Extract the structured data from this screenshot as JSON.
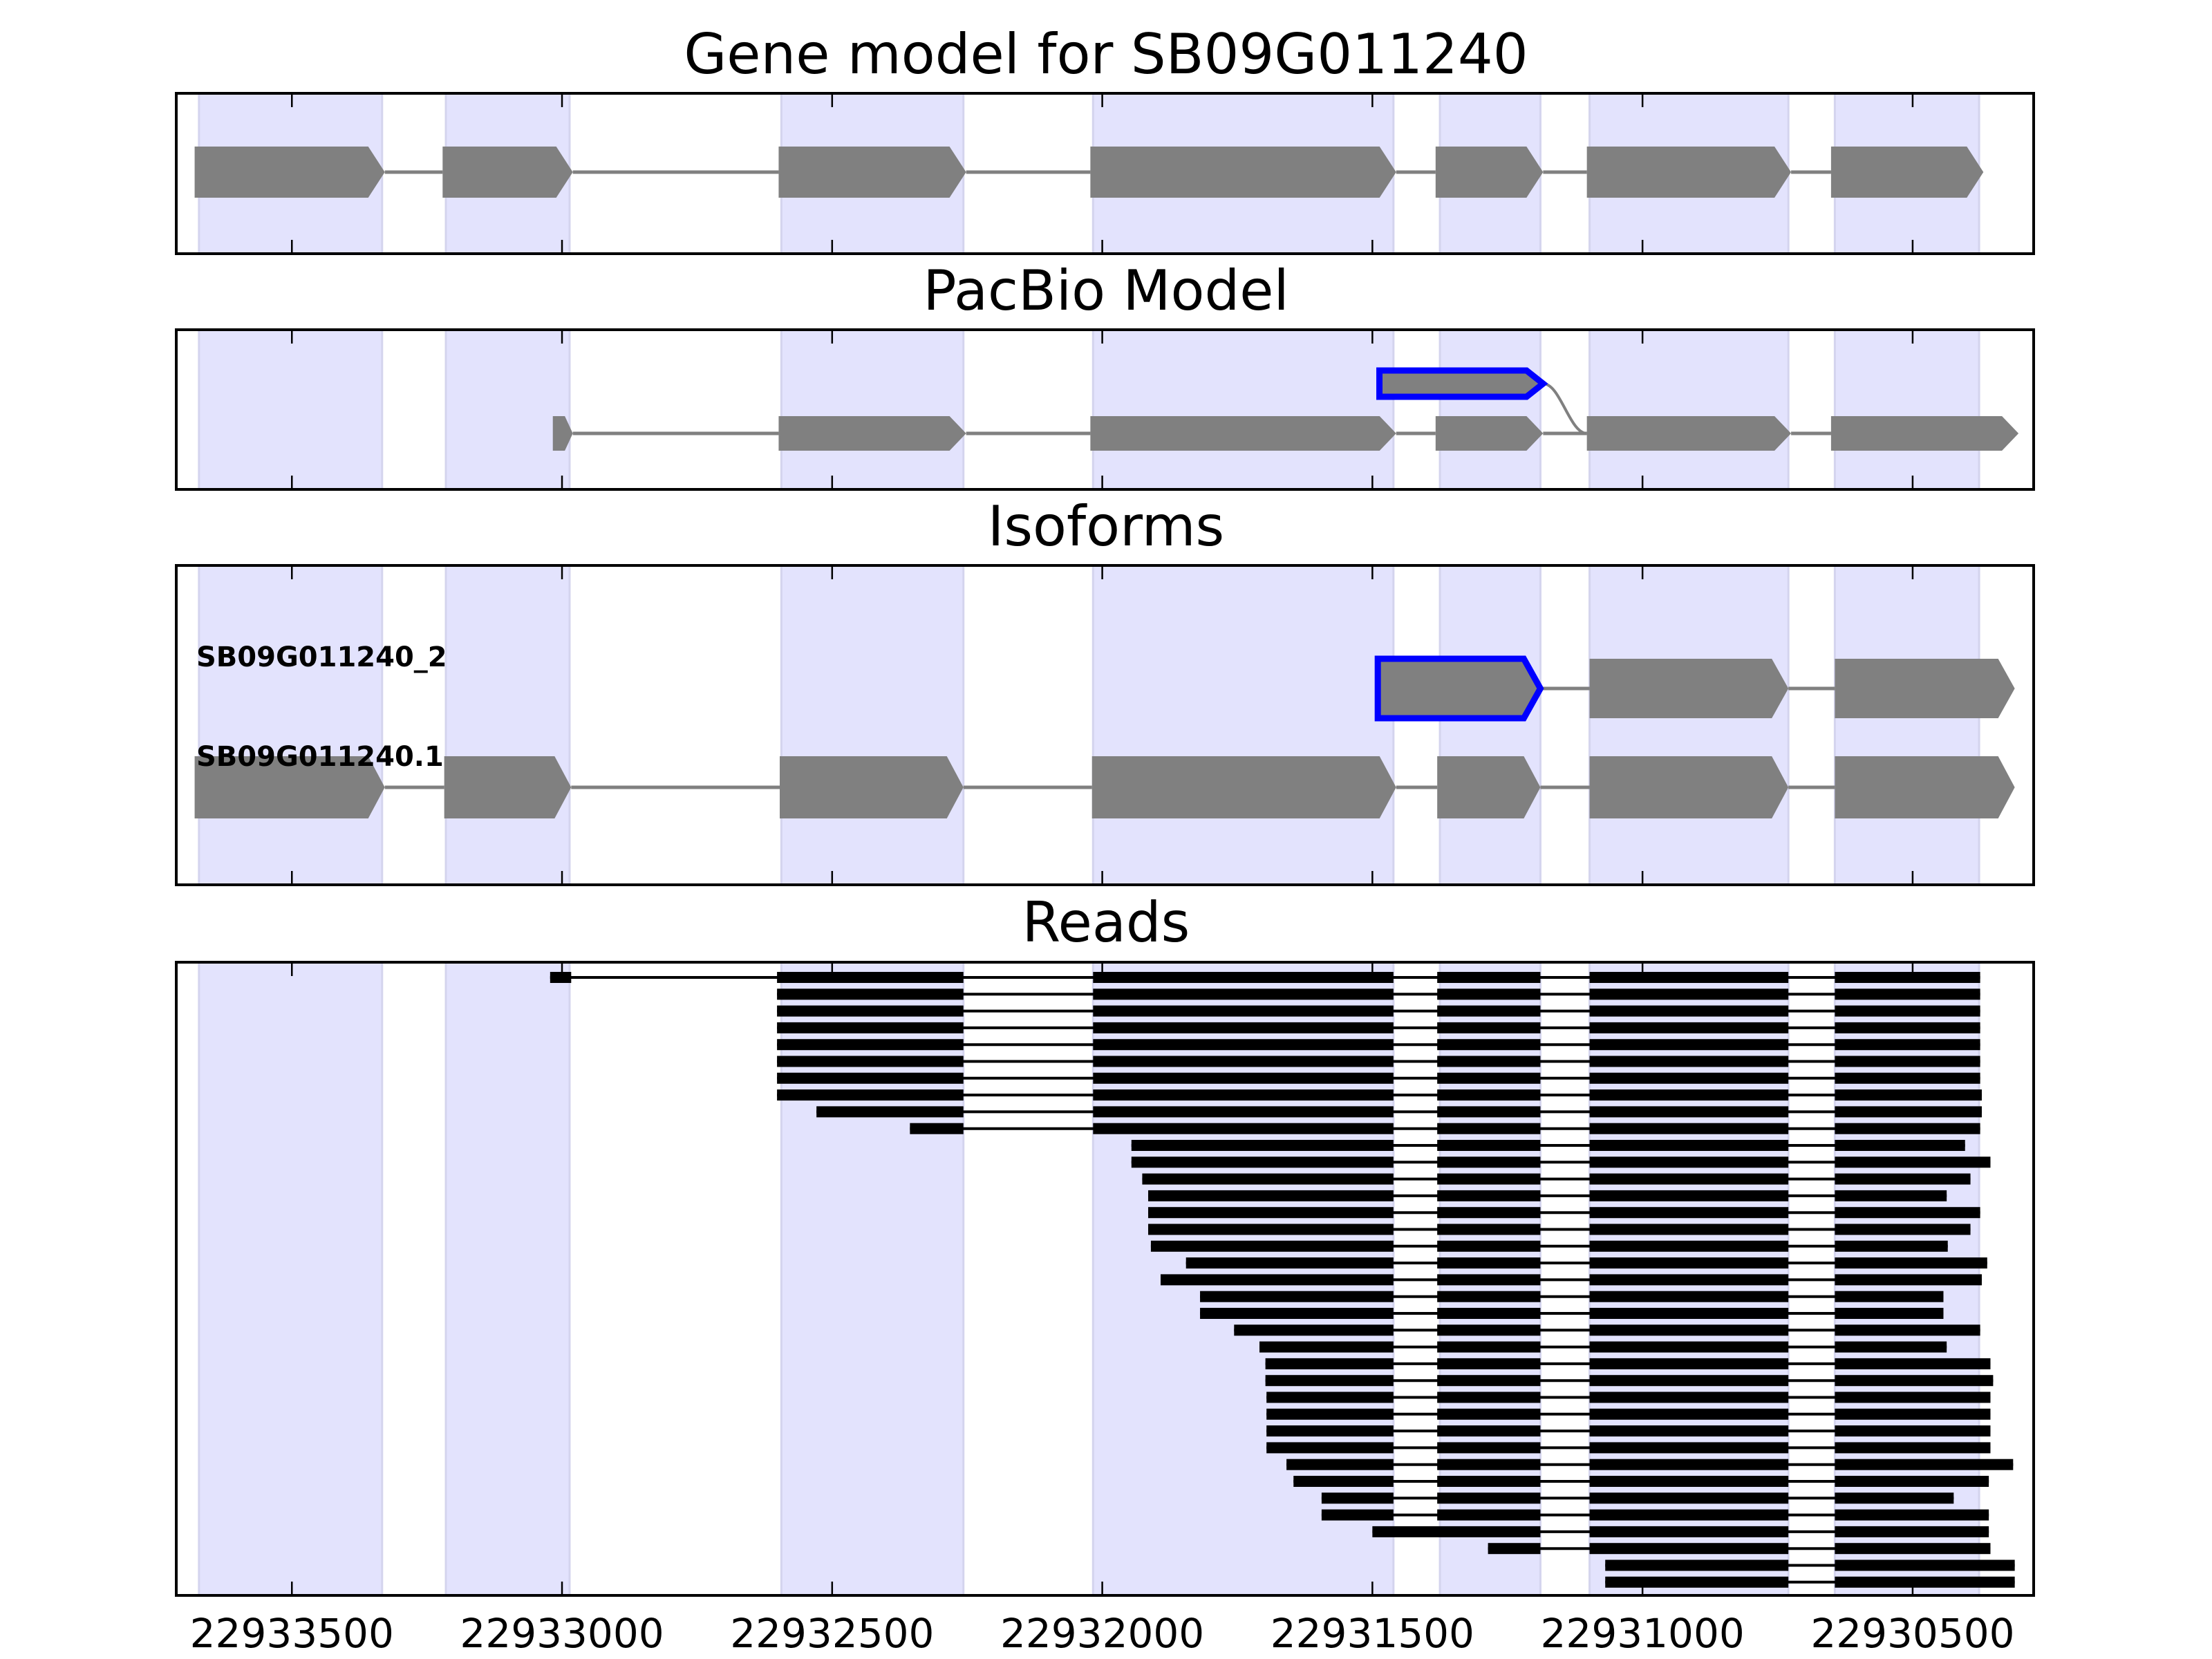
{
  "chart_data": {
    "type": "gene-track",
    "xlim": [
      22933714,
      22930276
    ],
    "x_ticks": [
      22933500,
      22933000,
      22932500,
      22932000,
      22931500,
      22931000,
      22930500
    ],
    "x_tick_labels": [
      "22933500",
      "22933000",
      "22932500",
      "22932000",
      "22931500",
      "22931000",
      "22930500"
    ],
    "colors": {
      "shade": "#e3e3fd",
      "exon": "#808080",
      "highlight": "#0000ff",
      "read": "#000000",
      "intron": "#808080"
    },
    "shaded_regions": [
      [
        22933672,
        22933333
      ],
      [
        22933215,
        22932986
      ],
      [
        22932594,
        22932257
      ],
      [
        22932017,
        22931461
      ],
      [
        22931375,
        22931189
      ],
      [
        22931098,
        22930730
      ],
      [
        22930644,
        22930377
      ]
    ],
    "panels": [
      {
        "title": "Gene model for SB09G011240",
        "rows": [
          {
            "exons": [
              [
                22933680,
                22933328
              ],
              [
                22933221,
                22932980
              ],
              [
                22932599,
                22932252
              ],
              [
                22932022,
                22931456
              ],
              [
                22931383,
                22931184
              ],
              [
                22931103,
                22930725
              ],
              [
                22930651,
                22930369
              ]
            ]
          }
        ]
      },
      {
        "title": "PacBio Model",
        "rows": [
          {
            "exons": [
              [
                22931487,
                22931184
              ]
            ],
            "highlight": true,
            "joins_next_row_at": 22931103
          },
          {
            "exons": [
              [
                22933017,
                22932980
              ],
              [
                22932599,
                22932252
              ],
              [
                22932022,
                22931456
              ],
              [
                22931383,
                22931184
              ],
              [
                22931103,
                22930725
              ],
              [
                22930651,
                22930304
              ]
            ]
          }
        ]
      },
      {
        "title": "Isoforms",
        "rows": [
          {
            "label": "SB09G011240_2",
            "exons": [
              [
                22931490,
                22931189
              ],
              [
                22931098,
                22930730
              ],
              [
                22930644,
                22930311
              ]
            ],
            "highlight_first": true
          },
          {
            "label": "SB09G011240.1",
            "exons": [
              [
                22933680,
                22933328
              ],
              [
                22933218,
                22932983
              ],
              [
                22932597,
                22932257
              ],
              [
                22932019,
                22931456
              ],
              [
                22931380,
                22931189
              ],
              [
                22931098,
                22930730
              ],
              [
                22930644,
                22930311
              ]
            ]
          }
        ]
      },
      {
        "title": "Reads"
      }
    ],
    "reads": [
      [
        [
          22933022,
          22932983
        ],
        [
          22932602,
          22932257
        ],
        [
          22932017,
          22931461
        ],
        [
          22931380,
          22931189
        ],
        [
          22931098,
          22930730
        ],
        [
          22930644,
          22930375
        ]
      ],
      [
        [
          22932602,
          22932257
        ],
        [
          22932017,
          22931461
        ],
        [
          22931380,
          22931189
        ],
        [
          22931098,
          22930730
        ],
        [
          22930644,
          22930375
        ]
      ],
      [
        [
          22932602,
          22932257
        ],
        [
          22932017,
          22931461
        ],
        [
          22931380,
          22931189
        ],
        [
          22931098,
          22930730
        ],
        [
          22930644,
          22930375
        ]
      ],
      [
        [
          22932602,
          22932257
        ],
        [
          22932017,
          22931461
        ],
        [
          22931380,
          22931189
        ],
        [
          22931098,
          22930730
        ],
        [
          22930644,
          22930375
        ]
      ],
      [
        [
          22932602,
          22932257
        ],
        [
          22932017,
          22931461
        ],
        [
          22931380,
          22931189
        ],
        [
          22931098,
          22930730
        ],
        [
          22930644,
          22930375
        ]
      ],
      [
        [
          22932602,
          22932257
        ],
        [
          22932017,
          22931461
        ],
        [
          22931380,
          22931189
        ],
        [
          22931098,
          22930730
        ],
        [
          22930644,
          22930375
        ]
      ],
      [
        [
          22932602,
          22932257
        ],
        [
          22932017,
          22931461
        ],
        [
          22931380,
          22931189
        ],
        [
          22931098,
          22930730
        ],
        [
          22930644,
          22930375
        ]
      ],
      [
        [
          22932602,
          22932257
        ],
        [
          22932017,
          22931461
        ],
        [
          22931380,
          22931189
        ],
        [
          22931098,
          22930730
        ],
        [
          22930644,
          22930372
        ]
      ],
      [
        [
          22932529,
          22932257
        ],
        [
          22932017,
          22931461
        ],
        [
          22931380,
          22931189
        ],
        [
          22931098,
          22930730
        ],
        [
          22930644,
          22930372
        ]
      ],
      [
        [
          22932356,
          22932257
        ],
        [
          22932017,
          22931461
        ],
        [
          22931380,
          22931189
        ],
        [
          22931098,
          22930730
        ],
        [
          22930644,
          22930375
        ]
      ],
      [
        [
          22931946,
          22931461
        ],
        [
          22931380,
          22931189
        ],
        [
          22931098,
          22930730
        ],
        [
          22930644,
          22930403
        ]
      ],
      [
        [
          22931946,
          22931461
        ],
        [
          22931380,
          22931189
        ],
        [
          22931098,
          22930730
        ],
        [
          22930644,
          22930356
        ]
      ],
      [
        [
          22931926,
          22931461
        ],
        [
          22931380,
          22931189
        ],
        [
          22931098,
          22930730
        ],
        [
          22930644,
          22930393
        ]
      ],
      [
        [
          22931915,
          22931461
        ],
        [
          22931380,
          22931189
        ],
        [
          22931098,
          22930730
        ],
        [
          22930644,
          22930437
        ]
      ],
      [
        [
          22931915,
          22931461
        ],
        [
          22931380,
          22931189
        ],
        [
          22931098,
          22930730
        ],
        [
          22930644,
          22930375
        ]
      ],
      [
        [
          22931915,
          22931461
        ],
        [
          22931380,
          22931189
        ],
        [
          22931098,
          22930730
        ],
        [
          22930644,
          22930393
        ]
      ],
      [
        [
          22931910,
          22931461
        ],
        [
          22931380,
          22931189
        ],
        [
          22931098,
          22930730
        ],
        [
          22930644,
          22930435
        ]
      ],
      [
        [
          22931845,
          22931461
        ],
        [
          22931380,
          22931189
        ],
        [
          22931098,
          22930730
        ],
        [
          22930644,
          22930362
        ]
      ],
      [
        [
          22931892,
          22931461
        ],
        [
          22931380,
          22931189
        ],
        [
          22931098,
          22930730
        ],
        [
          22930644,
          22930372
        ]
      ],
      [
        [
          22931819,
          22931461
        ],
        [
          22931380,
          22931189
        ],
        [
          22931098,
          22930730
        ],
        [
          22930644,
          22930443
        ]
      ],
      [
        [
          22931819,
          22931461
        ],
        [
          22931380,
          22931189
        ],
        [
          22931098,
          22930730
        ],
        [
          22930644,
          22930443
        ]
      ],
      [
        [
          22931756,
          22931461
        ],
        [
          22931380,
          22931189
        ],
        [
          22931098,
          22930730
        ],
        [
          22930644,
          22930375
        ]
      ],
      [
        [
          22931709,
          22931461
        ],
        [
          22931380,
          22931189
        ],
        [
          22931098,
          22930730
        ],
        [
          22930644,
          22930437
        ]
      ],
      [
        [
          22931698,
          22931461
        ],
        [
          22931380,
          22931189
        ],
        [
          22931098,
          22930730
        ],
        [
          22930644,
          22930356
        ]
      ],
      [
        [
          22931698,
          22931461
        ],
        [
          22931380,
          22931189
        ],
        [
          22931098,
          22930730
        ],
        [
          22930644,
          22930351
        ]
      ],
      [
        [
          22931696,
          22931461
        ],
        [
          22931380,
          22931189
        ],
        [
          22931098,
          22930730
        ],
        [
          22930644,
          22930356
        ]
      ],
      [
        [
          22931696,
          22931461
        ],
        [
          22931380,
          22931189
        ],
        [
          22931098,
          22930730
        ],
        [
          22930644,
          22930356
        ]
      ],
      [
        [
          22931696,
          22931461
        ],
        [
          22931380,
          22931189
        ],
        [
          22931098,
          22930730
        ],
        [
          22930644,
          22930356
        ]
      ],
      [
        [
          22931696,
          22931461
        ],
        [
          22931380,
          22931189
        ],
        [
          22931098,
          22930730
        ],
        [
          22930644,
          22930356
        ]
      ],
      [
        [
          22931659,
          22931461
        ],
        [
          22931380,
          22931189
        ],
        [
          22931098,
          22930730
        ],
        [
          22930644,
          22930314
        ]
      ],
      [
        [
          22931646,
          22931461
        ],
        [
          22931380,
          22931189
        ],
        [
          22931098,
          22930730
        ],
        [
          22930644,
          22930359
        ]
      ],
      [
        [
          22931594,
          22931461
        ],
        [
          22931380,
          22931189
        ],
        [
          22931098,
          22930730
        ],
        [
          22930644,
          22930424
        ]
      ],
      [
        [
          22931594,
          22931461
        ],
        [
          22931380,
          22931189
        ],
        [
          22931098,
          22930730
        ],
        [
          22930644,
          22930359
        ]
      ],
      [
        [
          22931500,
          22931189
        ],
        [
          22931098,
          22930730
        ],
        [
          22930644,
          22930359
        ]
      ],
      [
        [
          22931286,
          22931189
        ],
        [
          22931098,
          22930730
        ],
        [
          22930644,
          22930356
        ]
      ],
      [
        [
          22931069,
          22930730
        ],
        [
          22930644,
          22930311
        ]
      ],
      [
        [
          22931069,
          22930730
        ],
        [
          22930644,
          22930311
        ]
      ]
    ]
  }
}
